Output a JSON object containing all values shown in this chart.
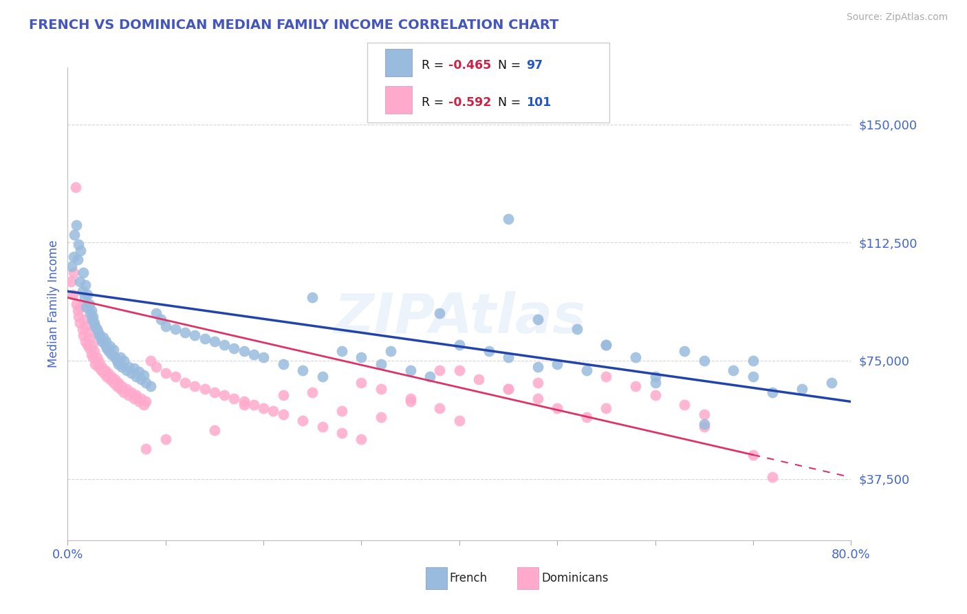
{
  "title": "FRENCH VS DOMINICAN MEDIAN FAMILY INCOME CORRELATION CHART",
  "source_text": "Source: ZipAtlas.com",
  "ylabel": "Median Family Income",
  "xlim": [
    0.0,
    0.8
  ],
  "ylim": [
    18000,
    168000
  ],
  "yticks": [
    37500,
    75000,
    112500,
    150000
  ],
  "ytick_labels": [
    "$37,500",
    "$75,000",
    "$112,500",
    "$150,000"
  ],
  "xtick_positions": [
    0.0,
    0.1,
    0.2,
    0.3,
    0.4,
    0.5,
    0.6,
    0.7,
    0.8
  ],
  "xtick_labels_show": [
    "0.0%",
    "",
    "",
    "",
    "",
    "",
    "",
    "",
    "80.0%"
  ],
  "title_color": "#4455bb",
  "tick_label_color": "#4466cc",
  "source_color": "#aaaaaa",
  "background_color": "#ffffff",
  "grid_color": "#cccccc",
  "french_color": "#99bbdd",
  "dominican_color": "#ffaacc",
  "french_line_color": "#2244aa",
  "dominican_line_color": "#dd3366",
  "french_R": "-0.465",
  "french_N": "97",
  "dominican_R": "-0.592",
  "dominican_N": "101",
  "watermark": "ZIPAtlas",
  "legend_french": "French",
  "legend_dominicans": "Dominicans",
  "legend_R_color": "#cc2244",
  "legend_N_color": "#2255cc",
  "legend_label_color": "#111111",
  "french_scatter_x": [
    0.004,
    0.006,
    0.007,
    0.009,
    0.01,
    0.011,
    0.012,
    0.013,
    0.015,
    0.016,
    0.017,
    0.018,
    0.019,
    0.02,
    0.022,
    0.023,
    0.024,
    0.025,
    0.026,
    0.027,
    0.028,
    0.03,
    0.031,
    0.032,
    0.034,
    0.035,
    0.036,
    0.038,
    0.039,
    0.04,
    0.042,
    0.043,
    0.045,
    0.047,
    0.048,
    0.05,
    0.052,
    0.054,
    0.055,
    0.057,
    0.06,
    0.062,
    0.065,
    0.068,
    0.07,
    0.073,
    0.075,
    0.078,
    0.08,
    0.085,
    0.09,
    0.095,
    0.1,
    0.11,
    0.12,
    0.13,
    0.14,
    0.15,
    0.16,
    0.17,
    0.18,
    0.19,
    0.2,
    0.22,
    0.24,
    0.26,
    0.28,
    0.3,
    0.32,
    0.35,
    0.37,
    0.4,
    0.43,
    0.45,
    0.48,
    0.5,
    0.53,
    0.55,
    0.58,
    0.6,
    0.63,
    0.65,
    0.68,
    0.7,
    0.72,
    0.52,
    0.38,
    0.25,
    0.45,
    0.6,
    0.33,
    0.48,
    0.55,
    0.65,
    0.7,
    0.75,
    0.78
  ],
  "french_scatter_y": [
    105000,
    108000,
    115000,
    118000,
    107000,
    112000,
    100000,
    110000,
    97000,
    103000,
    95000,
    99000,
    92000,
    96000,
    93000,
    90000,
    91000,
    88000,
    89000,
    87000,
    86000,
    85000,
    84000,
    83000,
    82000,
    81000,
    82500,
    80000,
    81000,
    79000,
    78000,
    79500,
    77000,
    78500,
    76000,
    75000,
    74000,
    76000,
    73000,
    75000,
    72000,
    73000,
    71000,
    72500,
    70000,
    71500,
    69000,
    70500,
    68000,
    67000,
    90000,
    88000,
    86000,
    85000,
    84000,
    83000,
    82000,
    81000,
    80000,
    79000,
    78000,
    77000,
    76000,
    74000,
    72000,
    70000,
    78000,
    76000,
    74000,
    72000,
    70000,
    80000,
    78000,
    76000,
    88000,
    74000,
    72000,
    80000,
    76000,
    70000,
    78000,
    75000,
    72000,
    70000,
    65000,
    85000,
    90000,
    95000,
    120000,
    68000,
    78000,
    73000,
    80000,
    55000,
    75000,
    66000,
    68000
  ],
  "dominican_scatter_x": [
    0.003,
    0.005,
    0.006,
    0.008,
    0.009,
    0.01,
    0.011,
    0.012,
    0.013,
    0.015,
    0.016,
    0.017,
    0.018,
    0.019,
    0.02,
    0.021,
    0.022,
    0.023,
    0.024,
    0.025,
    0.026,
    0.027,
    0.028,
    0.03,
    0.031,
    0.032,
    0.034,
    0.035,
    0.037,
    0.038,
    0.04,
    0.041,
    0.043,
    0.045,
    0.047,
    0.048,
    0.05,
    0.052,
    0.054,
    0.055,
    0.057,
    0.06,
    0.062,
    0.065,
    0.068,
    0.07,
    0.073,
    0.075,
    0.078,
    0.08,
    0.085,
    0.09,
    0.1,
    0.11,
    0.12,
    0.13,
    0.14,
    0.15,
    0.16,
    0.17,
    0.18,
    0.19,
    0.2,
    0.21,
    0.22,
    0.24,
    0.26,
    0.28,
    0.3,
    0.32,
    0.35,
    0.38,
    0.4,
    0.42,
    0.45,
    0.48,
    0.5,
    0.53,
    0.55,
    0.58,
    0.6,
    0.63,
    0.65,
    0.22,
    0.18,
    0.3,
    0.25,
    0.35,
    0.28,
    0.4,
    0.15,
    0.1,
    0.08,
    0.45,
    0.55,
    0.65,
    0.7,
    0.72,
    0.38,
    0.48,
    0.32
  ],
  "dominican_scatter_y": [
    100000,
    96000,
    103000,
    130000,
    93000,
    91000,
    89000,
    87000,
    92000,
    85000,
    83000,
    88000,
    81000,
    86000,
    80000,
    84000,
    79000,
    82000,
    77000,
    80000,
    76000,
    78000,
    74000,
    76000,
    73000,
    74500,
    72000,
    73000,
    71000,
    72000,
    70000,
    71000,
    69000,
    70000,
    68000,
    69000,
    67000,
    68000,
    66000,
    67000,
    65000,
    66000,
    64000,
    65000,
    63000,
    64000,
    62000,
    63000,
    61000,
    62000,
    75000,
    73000,
    71000,
    70000,
    68000,
    67000,
    66000,
    65000,
    64000,
    63000,
    62000,
    61000,
    60000,
    59000,
    58000,
    56000,
    54000,
    52000,
    50000,
    66000,
    63000,
    60000,
    72000,
    69000,
    66000,
    63000,
    60000,
    57000,
    70000,
    67000,
    64000,
    61000,
    58000,
    64000,
    61000,
    68000,
    65000,
    62000,
    59000,
    56000,
    53000,
    50000,
    47000,
    66000,
    60000,
    54000,
    45000,
    38000,
    72000,
    68000,
    57000
  ]
}
